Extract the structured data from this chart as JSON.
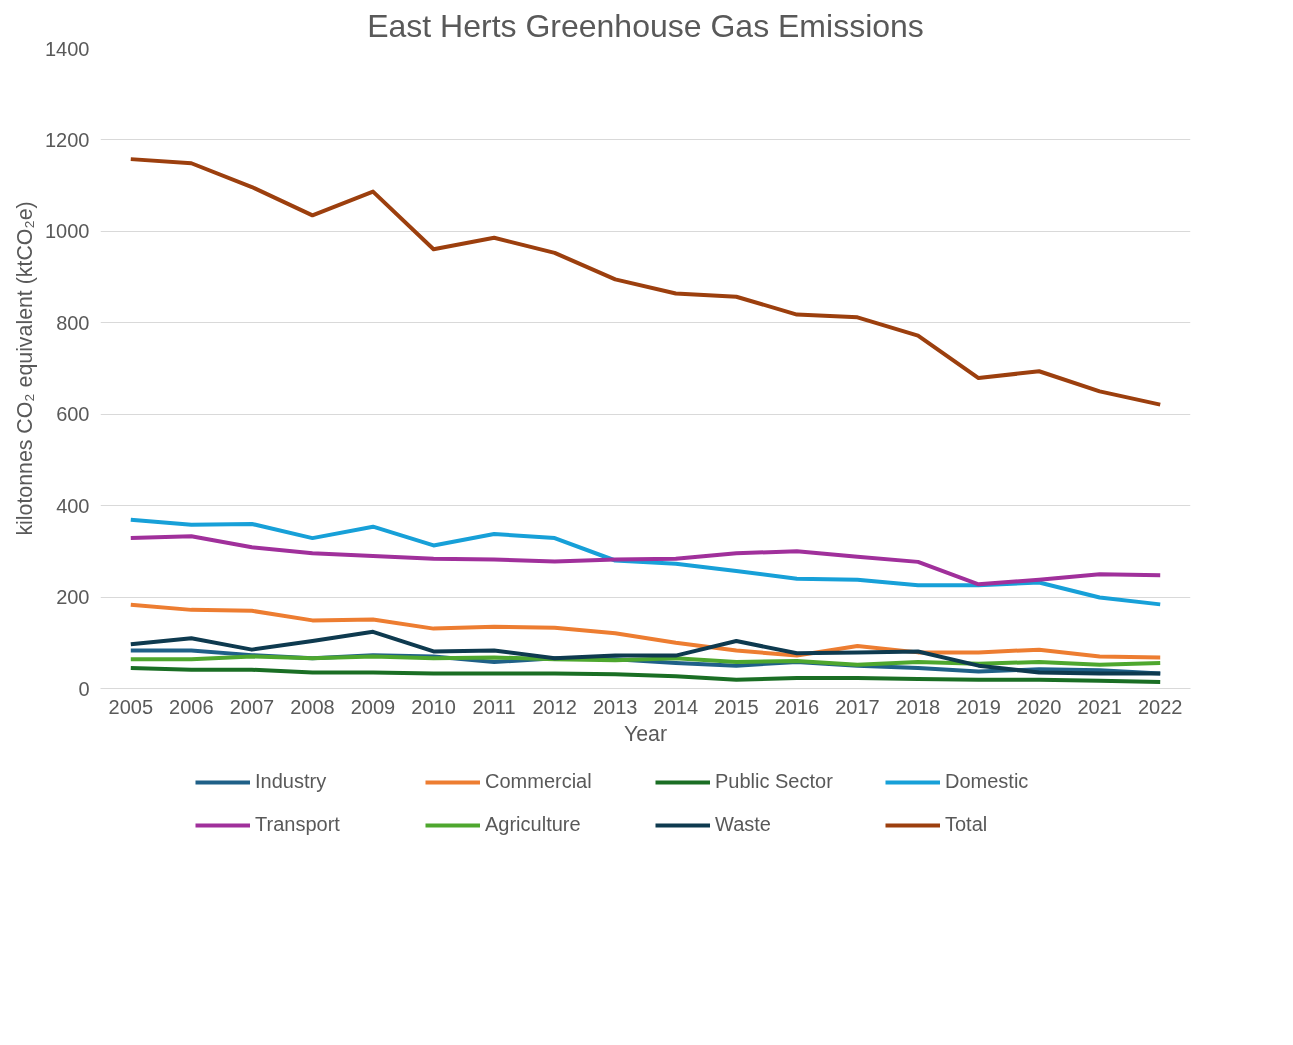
{
  "chart_data": {
    "type": "line",
    "title": "East Herts Greenhouse Gas Emissions",
    "xlabel": "Year",
    "ylabel": "kilotonnes CO₂ equivalent (ktCO₂e)",
    "categories": [
      "2005",
      "2006",
      "2007",
      "2008",
      "2009",
      "2010",
      "2011",
      "2012",
      "2013",
      "2014",
      "2015",
      "2016",
      "2017",
      "2018",
      "2019",
      "2020",
      "2021",
      "2022"
    ],
    "ylim": [
      0,
      1400
    ],
    "yticks": [
      0,
      200,
      400,
      600,
      800,
      1000,
      1200,
      1400
    ],
    "grid": "y",
    "legend": "bottom",
    "marker": "none",
    "line_style": "solid",
    "series": [
      {
        "name": "Industry",
        "color": "#1f6088",
        "values": [
          83,
          83,
          73,
          66,
          73,
          70,
          58,
          66,
          64,
          56,
          50,
          58,
          50,
          45,
          37,
          42,
          40,
          33
        ]
      },
      {
        "name": "Commercial",
        "color": "#ed7d31",
        "values": [
          183,
          172,
          170,
          149,
          151,
          131,
          135,
          133,
          121,
          100,
          83,
          72,
          93,
          79,
          79,
          85,
          70,
          68
        ]
      },
      {
        "name": "Public Sector",
        "color": "#1a6e24",
        "values": [
          45,
          41,
          41,
          35,
          35,
          33,
          33,
          33,
          31,
          27,
          19,
          23,
          23,
          21,
          19,
          19,
          17,
          14
        ]
      },
      {
        "name": "Domestic",
        "color": "#17a0d8",
        "values": [
          369,
          358,
          360,
          329,
          354,
          313,
          338,
          329,
          280,
          273,
          257,
          240,
          238,
          226,
          226,
          232,
          199,
          184
        ]
      },
      {
        "name": "Transport",
        "color": "#a0309b",
        "values": [
          329,
          333,
          309,
          296,
          290,
          284,
          282,
          278,
          282,
          284,
          296,
          300,
          288,
          277,
          228,
          238,
          250,
          248
        ]
      },
      {
        "name": "Agriculture",
        "color": "#4ea72e",
        "values": [
          64,
          64,
          70,
          66,
          70,
          66,
          68,
          64,
          62,
          66,
          58,
          60,
          52,
          58,
          54,
          58,
          52,
          56
        ]
      },
      {
        "name": "Waste",
        "color": "#0e3a4f",
        "values": [
          97,
          110,
          85,
          104,
          124,
          81,
          83,
          66,
          72,
          72,
          104,
          77,
          79,
          81,
          50,
          35,
          33,
          33
        ]
      },
      {
        "name": "Total",
        "color": "#9c3f0e",
        "values": [
          1158,
          1149,
          1097,
          1035,
          1087,
          961,
          986,
          953,
          895,
          864,
          857,
          818,
          812,
          772,
          679,
          694,
          650,
          621
        ]
      }
    ]
  }
}
